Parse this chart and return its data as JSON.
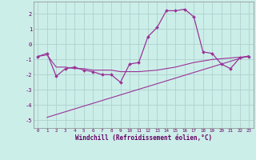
{
  "xlabel": "Windchill (Refroidissement éolien,°C)",
  "background_color": "#cceee8",
  "grid_color": "#aacccc",
  "line_color": "#993399",
  "hours": [
    0,
    1,
    2,
    3,
    4,
    5,
    6,
    7,
    8,
    9,
    10,
    11,
    12,
    13,
    14,
    15,
    16,
    17,
    18,
    19,
    20,
    21,
    22,
    23
  ],
  "windchill": [
    -0.8,
    -0.6,
    -2.1,
    -1.6,
    -1.5,
    -1.7,
    -1.8,
    -2.0,
    -2.0,
    -2.5,
    -1.3,
    -1.2,
    0.5,
    1.1,
    2.2,
    2.2,
    2.3,
    1.8,
    -0.5,
    -0.6,
    -1.3,
    -1.6,
    -0.9,
    -0.8
  ],
  "trend1_x": [
    0,
    1,
    2,
    3,
    4,
    5,
    6,
    7,
    8,
    9,
    10,
    11,
    12,
    13,
    14,
    15,
    16,
    17,
    18,
    19,
    20,
    21,
    22,
    23
  ],
  "trend1_y": [
    -0.8,
    -0.7,
    -1.5,
    -1.5,
    -1.6,
    -1.6,
    -1.7,
    -1.7,
    -1.7,
    -1.8,
    -1.8,
    -1.8,
    -1.75,
    -1.7,
    -1.6,
    -1.5,
    -1.35,
    -1.2,
    -1.1,
    -1.0,
    -0.95,
    -0.9,
    -0.85,
    -0.8
  ],
  "trend2_x": [
    1,
    23
  ],
  "trend2_y": [
    -4.8,
    -0.75
  ],
  "ylim": [
    -5.5,
    2.8
  ],
  "yticks": [
    -5,
    -4,
    -3,
    -2,
    -1,
    0,
    1,
    2
  ],
  "xticks": [
    0,
    1,
    2,
    3,
    4,
    5,
    6,
    7,
    8,
    9,
    10,
    11,
    12,
    13,
    14,
    15,
    16,
    17,
    18,
    19,
    20,
    21,
    22,
    23
  ],
  "xlabel_color": "#660066",
  "tick_color": "#660066"
}
